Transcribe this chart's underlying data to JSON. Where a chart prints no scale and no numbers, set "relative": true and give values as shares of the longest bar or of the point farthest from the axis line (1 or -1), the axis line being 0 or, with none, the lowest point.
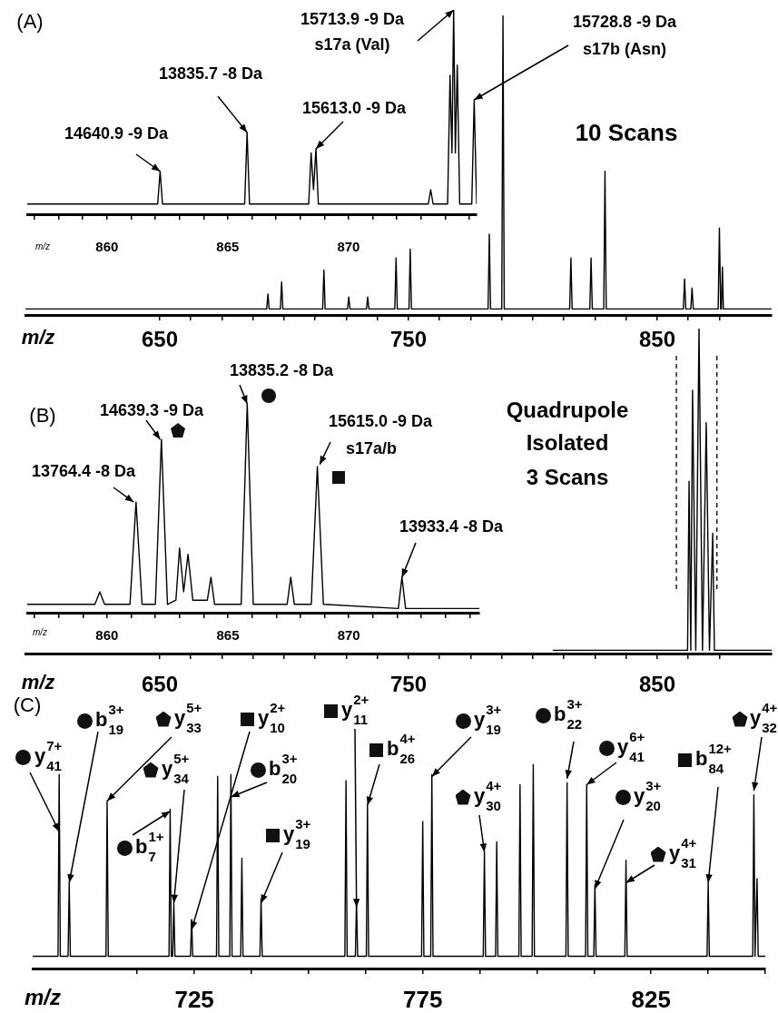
{
  "chart_data": [
    {
      "type": "line",
      "title": "(A)",
      "xlabel": "m/z",
      "relative": true,
      "color": "#000000",
      "xlim": [
        596,
        896
      ],
      "xticks": [
        650,
        {
          "value": 662.5,
          "label": null
        },
        {
          "value": 675,
          "label": null
        },
        {
          "value": 687.5,
          "label": null
        },
        {
          "value": 700,
          "label": null
        },
        {
          "value": 712.5,
          "label": null
        },
        {
          "value": 725,
          "label": null
        },
        {
          "value": 737.5,
          "label": null
        },
        750,
        {
          "value": 762.5,
          "label": null
        },
        {
          "value": 775,
          "label": null
        },
        {
          "value": 787.5,
          "label": null
        },
        {
          "value": 800,
          "label": null
        },
        {
          "value": 812.5,
          "label": null
        },
        {
          "value": 825,
          "label": null
        },
        {
          "value": 837.5,
          "label": null
        },
        850,
        {
          "value": 862.5,
          "label": null
        },
        {
          "value": 875,
          "label": null
        }
      ],
      "x": [
        596,
        693,
        693.5,
        694,
        698.5,
        699,
        699.5,
        715.5,
        716,
        716.5,
        725.5,
        726,
        726.5,
        733.1,
        733.6,
        734.1,
        744.5,
        745,
        745.5,
        750.2,
        750.7,
        751.2,
        782,
        782.5,
        783,
        787.5,
        788,
        788.5,
        814.8,
        815.3,
        815.8,
        822.9,
        823.4,
        823.9,
        828.5,
        829,
        829.5,
        860.5,
        861,
        861.5,
        863.5,
        864,
        864.5,
        874.5,
        875,
        875.5,
        875.8,
        876.2,
        876.6,
        896
      ],
      "values": [
        0.02,
        0.02,
        0.07,
        0.02,
        0.02,
        0.11,
        0.02,
        0.02,
        0.15,
        0.02,
        0.02,
        0.06,
        0.02,
        0.02,
        0.06,
        0.02,
        0.02,
        0.19,
        0.02,
        0.02,
        0.22,
        0.02,
        0.02,
        0.27,
        0.02,
        0.02,
        1,
        0.02,
        0.02,
        0.19,
        0.02,
        0.02,
        0.19,
        0.02,
        0.02,
        0.48,
        0.02,
        0.02,
        0.12,
        0.02,
        0.02,
        0.09,
        0.02,
        0.02,
        0.29,
        0.02,
        0.02,
        0.16,
        0.02,
        0.02
      ],
      "annotations": [
        "10 Scans"
      ]
    },
    {
      "type": "line",
      "xlabel": "m/z",
      "relative": true,
      "color": "#000000",
      "xlim": [
        856.7,
        875.3
      ],
      "xticks": [
        {
          "value": 857,
          "label": null
        },
        {
          "value": 858,
          "label": null
        },
        {
          "value": 859,
          "label": null
        },
        860,
        {
          "value": 861,
          "label": null
        },
        {
          "value": 862,
          "label": null
        },
        {
          "value": 863,
          "label": null
        },
        {
          "value": 864,
          "label": null
        },
        865,
        {
          "value": 866,
          "label": null
        },
        {
          "value": 867,
          "label": null
        },
        {
          "value": 868,
          "label": null
        },
        {
          "value": 869,
          "label": null
        },
        870,
        {
          "value": 871,
          "label": null
        },
        {
          "value": 872,
          "label": null
        },
        {
          "value": 873,
          "label": null
        },
        {
          "value": 874,
          "label": null
        },
        {
          "value": 875,
          "label": null
        }
      ],
      "x": [
        856.7,
        862.1,
        862.2,
        862.3,
        865.7,
        865.8,
        865.9,
        868.35,
        868.45,
        868.55,
        868.65,
        868.75,
        873.3,
        873.4,
        873.5,
        874.1,
        874.2,
        874.28,
        874.35,
        874.42,
        874.5,
        874.6,
        875.1,
        875.2,
        875.3
      ],
      "values": [
        0.05,
        0.05,
        0.21,
        0.05,
        0.05,
        0.4,
        0.05,
        0.05,
        0.3,
        0.12,
        0.32,
        0.05,
        0.05,
        0.12,
        0.05,
        0.05,
        0.68,
        0.3,
        1,
        0.3,
        0.73,
        0.05,
        0.05,
        0.56,
        0.05
      ],
      "annotations": [
        {
          "text": "14640.9 -9 Da",
          "x": 862.2,
          "y": 0.21
        },
        {
          "text": "13835.7 -8 Da",
          "x": 865.8,
          "y": 0.4
        },
        {
          "text": "15613.0 -9 Da",
          "x": 868.65,
          "y": 0.32
        },
        {
          "text": "15713.9 -9 Da\ns17a (Val)",
          "x": 874.35,
          "y": 1
        },
        {
          "text": "15728.8 -9 Da\ns17b (Asn)",
          "x": 875.2,
          "y": 0.56
        }
      ]
    },
    {
      "type": "line",
      "title": "(B)",
      "xlabel": "m/z",
      "relative": true,
      "color": "#000000",
      "xlim": [
        596,
        896
      ],
      "xticks": [
        650,
        {
          "value": 662.5,
          "label": null
        },
        {
          "value": 675,
          "label": null
        },
        {
          "value": 687.5,
          "label": null
        },
        {
          "value": 700,
          "label": null
        },
        {
          "value": 712.5,
          "label": null
        },
        {
          "value": 725,
          "label": null
        },
        {
          "value": 737.5,
          "label": null
        },
        750,
        {
          "value": 762.5,
          "label": null
        },
        {
          "value": 775,
          "label": null
        },
        {
          "value": 787.5,
          "label": null
        },
        {
          "value": 800,
          "label": null
        },
        {
          "value": 812.5,
          "label": null
        },
        {
          "value": 825,
          "label": null
        },
        {
          "value": 837.5,
          "label": null
        },
        850,
        {
          "value": 862.5,
          "label": null
        },
        {
          "value": 875,
          "label": null
        }
      ],
      "x": [
        808,
        862.2,
        862.8,
        863.5,
        864.2,
        865.5,
        866.8,
        868.2,
        869.7,
        871,
        872.3,
        873,
        896
      ],
      "values": [
        0.01,
        0.01,
        0.53,
        0.01,
        0.81,
        0.01,
        1,
        0.01,
        0.71,
        0.01,
        0.37,
        0.01,
        0.01
      ],
      "ref_lines": [
        {
          "axis": "x",
          "value": 857.7,
          "line_style": "dashed"
        },
        {
          "axis": "x",
          "value": 874,
          "line_style": "dashed"
        }
      ],
      "annotations": [
        "Quadrupole\nIsolated\n3 Scans"
      ]
    },
    {
      "type": "line",
      "xlabel": "m/z",
      "relative": true,
      "color": "#000000",
      "xlim": [
        856.7,
        875.4
      ],
      "xticks": [
        {
          "value": 857,
          "label": null
        },
        {
          "value": 858,
          "label": null
        },
        {
          "value": 859,
          "label": null
        },
        860,
        {
          "value": 861,
          "label": null
        },
        {
          "value": 862,
          "label": null
        },
        {
          "value": 863,
          "label": null
        },
        {
          "value": 864,
          "label": null
        },
        865,
        {
          "value": 866,
          "label": null
        },
        {
          "value": 867,
          "label": null
        },
        {
          "value": 868,
          "label": null
        },
        {
          "value": 869,
          "label": null
        },
        870,
        {
          "value": 871,
          "label": null
        },
        {
          "value": 872,
          "label": null
        },
        {
          "value": 873,
          "label": null
        },
        {
          "value": 874,
          "label": null
        },
        {
          "value": 875,
          "label": null
        }
      ],
      "x": [
        856.7,
        859.5,
        859.7,
        859.9,
        860.95,
        861.2,
        861.45,
        862,
        862.25,
        862.5,
        862.85,
        863,
        863.17,
        863.35,
        863.55,
        864.15,
        864.3,
        864.45,
        865.55,
        865.8,
        866.05,
        867.45,
        867.6,
        867.75,
        868.45,
        868.7,
        868.95,
        872.05,
        872.2,
        872.35,
        875.4
      ],
      "values": [
        0.04,
        0.04,
        0.1,
        0.04,
        0.04,
        0.53,
        0.04,
        0.04,
        0.83,
        0.04,
        0.06,
        0.31,
        0.1,
        0.28,
        0.06,
        0.06,
        0.17,
        0.04,
        0.04,
        1,
        0.04,
        0.04,
        0.17,
        0.04,
        0.04,
        0.7,
        0.04,
        0.02,
        0.17,
        0.02,
        0.02
      ],
      "annotations": [
        {
          "text": "13764.4 -8 Da",
          "x": 861.1,
          "y": 0.53
        },
        {
          "text": "14639.3 -9 Da",
          "x": 862.2,
          "y": 0.83
        },
        {
          "text": "13835.2 -8 Da",
          "x": 865.8,
          "y": 1
        },
        {
          "text": "15615.0 -9 Da\ns17a/b",
          "x": 868.8,
          "y": 0.71
        },
        {
          "text": "13933.4 -8 Da",
          "x": 872.2,
          "y": 0.17
        }
      ]
    },
    {
      "type": "line",
      "title": "(C)",
      "xlabel": "m/z",
      "relative": true,
      "color": "#000000",
      "xlim": [
        689.6,
        850
      ],
      "xticks": [
        {
          "value": 712.5,
          "label": null
        },
        725,
        {
          "value": 737.5,
          "label": null
        },
        {
          "value": 750,
          "label": null
        },
        {
          "value": 762.5,
          "label": null
        },
        775,
        {
          "value": 787.5,
          "label": null
        },
        {
          "value": 800,
          "label": null
        },
        {
          "value": 812.5,
          "label": null
        },
        825,
        {
          "value": 837.5,
          "label": null
        },
        {
          "value": 850,
          "label": null
        }
      ],
      "x": [
        689.6,
        695.15,
        695.4,
        695.65,
        697.35,
        697.6,
        697.85,
        705.65,
        705.9,
        706.15,
        719.45,
        719.7,
        719.95,
        720.25,
        720.5,
        720.75,
        724.15,
        724.4,
        724.65,
        729.85,
        730.1,
        730.35,
        732.75,
        733,
        733.25,
        735.15,
        735.4,
        735.65,
        739.35,
        739.6,
        739.85,
        757.95,
        758.2,
        758.45,
        760.25,
        760.5,
        760.75,
        762.65,
        762.9,
        763.15,
        774.75,
        775,
        775.25,
        776.75,
        777,
        777.25,
        788.25,
        788.5,
        788.75,
        790.95,
        791.2,
        791.45,
        796.05,
        796.3,
        796.55,
        798.95,
        799.2,
        799.45,
        806.35,
        806.6,
        806.85,
        810.65,
        810.9,
        811.15,
        812.45,
        812.7,
        812.95,
        819.25,
        819.5,
        819.75,
        837.25,
        837.5,
        837.75,
        847.25,
        847.5,
        847.75,
        848.2,
        848.45,
        850
      ],
      "values": [
        0.06,
        0.06,
        0.95,
        0.06,
        0.06,
        0.42,
        0.06,
        0.06,
        0.82,
        0.06,
        0.06,
        0.78,
        0.06,
        0.06,
        0.32,
        0.06,
        0.06,
        0.24,
        0.06,
        0.06,
        0.94,
        0.06,
        0.06,
        0.95,
        0.06,
        0.06,
        0.54,
        0.06,
        0.06,
        0.34,
        0.06,
        0.06,
        0.92,
        0.06,
        0.06,
        0.33,
        0.06,
        0.06,
        0.8,
        0.06,
        0.06,
        0.72,
        0.06,
        0.06,
        0.95,
        0.06,
        0.06,
        0.57,
        0.06,
        0.06,
        0.62,
        0.06,
        0.06,
        0.9,
        0.06,
        0.06,
        1,
        0.06,
        0.06,
        0.91,
        0.06,
        0.06,
        0.9,
        0.06,
        0.06,
        0.41,
        0.06,
        0.06,
        0.53,
        0.06,
        0.06,
        0.42,
        0.06,
        0.06,
        0.85,
        0.06,
        0.44,
        0.06,
        0.06
      ],
      "annotations": [
        {
          "text": "y$_{41}$$^{7+}$",
          "x": 695.4,
          "y": 0.67
        },
        {
          "text": "b$_{19}$$^{3+}$",
          "x": 697.6,
          "y": 0.42
        },
        {
          "text": "y$_{33}$$^{5+}$",
          "x": 705.9,
          "y": 0.82
        },
        {
          "text": "y$_{10}$$^{2+}$",
          "x": 724.4,
          "y": 0.19
        },
        {
          "text": "y$_{11}$$^{2+}$",
          "x": 760.5,
          "y": 0.3
        },
        {
          "text": "b$_{26}$$^{4+}$",
          "x": 762.9,
          "y": 0.8
        },
        {
          "text": "y$_{19}$$^{3+}$",
          "x": 777,
          "y": 0.94
        },
        {
          "text": "b$_{22}$$^{3+}$",
          "x": 806.6,
          "y": 0.93
        },
        {
          "text": "y$_{41}$$^{6+}$",
          "x": 810.9,
          "y": 0.9
        },
        {
          "text": "y$_{32}$$^{4+}$",
          "x": 847.5,
          "y": 0.87
        },
        {
          "text": "y$_{34}$$^{5+}$",
          "x": 720.5,
          "y": 0.32
        },
        {
          "text": "b$_{20}$$^{3+}$",
          "x": 733,
          "y": 0.84
        },
        {
          "text": "b$_{7}$$^{1+}$",
          "x": 719.7,
          "y": 0.77
        },
        {
          "text": "y$_{19}$$^{3+}$",
          "x": 739.6,
          "y": 0.32
        },
        {
          "text": "y$_{30}$$^{4+}$",
          "x": 788.5,
          "y": 0.57
        },
        {
          "text": "y$_{20}$$^{3+}$",
          "x": 812.7,
          "y": 0.39
        },
        {
          "text": "y$_{31}$$^{4+}$",
          "x": 819.5,
          "y": 0.42
        },
        {
          "text": "b$_{84}$$^{12+}$",
          "x": 837.5,
          "y": 0.42
        }
      ]
    }
  ]
}
